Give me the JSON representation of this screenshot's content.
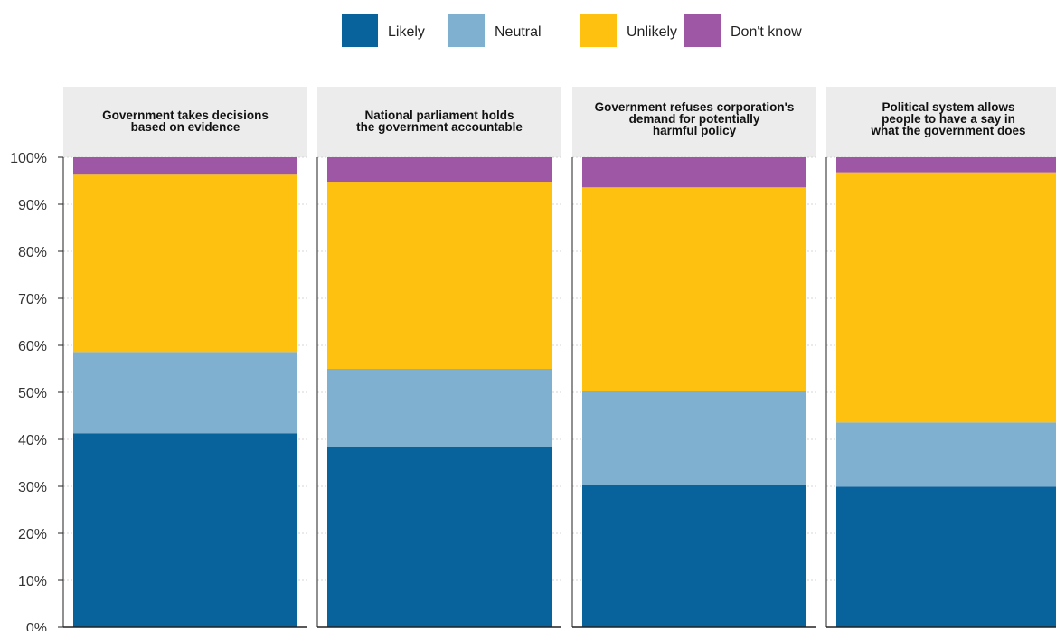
{
  "chart_data": {
    "type": "bar",
    "stacked": true,
    "normalized": true,
    "legend": {
      "position": "top",
      "items": [
        {
          "label": "Likely",
          "color": "#08629b"
        },
        {
          "label": "Neutral",
          "color": "#80b0cf"
        },
        {
          "label": "Unlikely",
          "color": "#fec10f"
        },
        {
          "label": "Don't know",
          "color": "#9e57a4"
        }
      ]
    },
    "y_axis": {
      "ylim": [
        0,
        100
      ],
      "ticks": [
        "0%",
        "10%",
        "20%",
        "30%",
        "40%",
        "50%",
        "60%",
        "70%",
        "80%",
        "90%",
        "100%"
      ]
    },
    "panels": [
      {
        "title": [
          "Government takes decisions",
          "based on evidence"
        ],
        "values": {
          "Likely": 41.3,
          "Neutral": 17.3,
          "Unlikely": 37.7,
          "Don't know": 3.7
        }
      },
      {
        "title": [
          "National parliament holds",
          "the government accountable"
        ],
        "values": {
          "Likely": 38.4,
          "Neutral": 16.6,
          "Unlikely": 39.8,
          "Don't know": 5.2
        }
      },
      {
        "title": [
          "Government refuses corporation's",
          "demand for potentially",
          "harmful policy"
        ],
        "values": {
          "Likely": 30.3,
          "Neutral": 20.0,
          "Unlikely": 43.3,
          "Don't know": 6.4
        }
      },
      {
        "title": [
          "Political system allows",
          "people to have a say in",
          "what the government does"
        ],
        "values": {
          "Likely": 29.9,
          "Neutral": 13.7,
          "Unlikely": 53.2,
          "Don't know": 3.2
        }
      }
    ]
  }
}
